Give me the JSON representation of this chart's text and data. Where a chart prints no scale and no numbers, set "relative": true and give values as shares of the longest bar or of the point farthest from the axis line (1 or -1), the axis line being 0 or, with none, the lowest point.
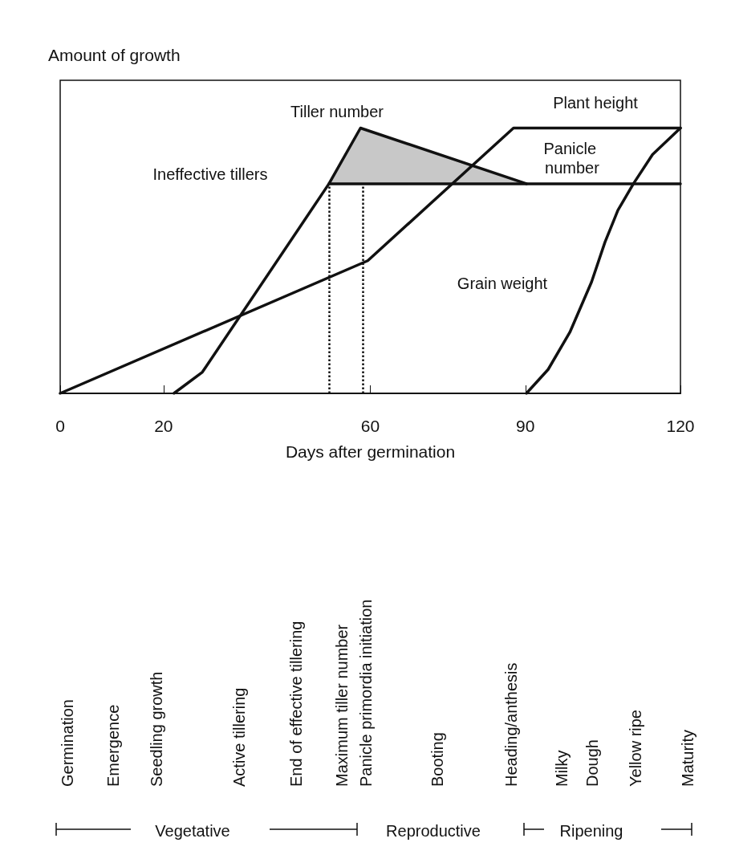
{
  "chart_data": {
    "type": "line",
    "relative": true,
    "ylabel": "Amount of growth",
    "xlabel": "Days after germination",
    "xlim": [
      0,
      120
    ],
    "xticks": [
      0,
      20,
      60,
      90,
      120
    ],
    "series": [
      {
        "color": "#111111",
        "x": [
          0,
          59.5,
          87.7,
          120
        ],
        "values": [
          0,
          0.5,
          1,
          1
        ]
      },
      {
        "color": "#111111",
        "x": [
          22,
          27.5,
          52,
          58.1,
          90.2
        ],
        "values": [
          0,
          0.08,
          0.79,
          1,
          0.79
        ],
        "lower": [
          null,
          null,
          0.79,
          0.79,
          0.79
        ],
        "upper": [
          null,
          null,
          0.79,
          1,
          0.79
        ]
      },
      {
        "color": "#111111",
        "x": [
          52,
          120
        ],
        "values": [
          0.79,
          0.79
        ]
      },
      {
        "color": "#111111",
        "x": [
          90.2,
          94.4,
          98.6,
          102.8,
          105.4,
          107.9,
          110.9,
          114.6,
          120
        ],
        "values": [
          0,
          0.09,
          0.23,
          0.42,
          0.57,
          0.69,
          0.79,
          0.9,
          1
        ]
      }
    ],
    "ref_lines": [
      {
        "axis": "x",
        "value": 52,
        "line_style": "dotted"
      },
      {
        "axis": "x",
        "value": 58.5,
        "line_style": "dotted"
      }
    ],
    "annotations": [
      "Tiller number",
      "Plant height",
      "Panicle number",
      "Grain weight",
      "Ineffective tillers",
      "Germination",
      "Emergence",
      "Seedling growth",
      "Active tillering",
      "End of effective tillering",
      "Maximum tiller number",
      "Panicle primordia initiation",
      "Booting",
      "Heading/anthesis",
      "Milky",
      "Dough",
      "Yellow ripe",
      "Maturity",
      "Vegetative",
      "Reproductive",
      "Ripening"
    ]
  }
}
